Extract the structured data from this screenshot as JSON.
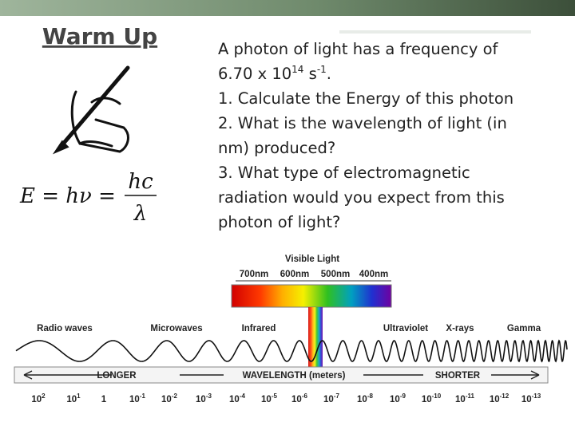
{
  "header": {
    "title": "Warm Up"
  },
  "formula": {
    "left": "E = hν =",
    "numerator": "hc",
    "denominator": "λ"
  },
  "prompt": {
    "line1": "A photon of light has a frequency of",
    "line2": {
      "base": "6.70 x 10",
      "exp": "14",
      "unit": " s",
      "unit_exp": "-1",
      "end": "."
    },
    "questions": [
      "1. Calculate the Energy of this photon",
      "2. What is the wavelength of light (in",
      "nm) produced?",
      "3. What type of electromagnetic",
      "radiation would you expect from this",
      "photon of light?"
    ]
  },
  "spectrum": {
    "visible_title": "Visible Light",
    "visible_ticks": [
      "700nm",
      "600nm",
      "500nm",
      "400nm"
    ],
    "bands": [
      "Radio waves",
      "Microwaves",
      "Infrared",
      "Ultraviolet",
      "X-rays",
      "Gamma"
    ],
    "arrow": {
      "left": "LONGER",
      "center": "WAVELENGTH (meters)",
      "right": "SHORTER"
    },
    "scale": [
      {
        "base": "10",
        "exp": "2"
      },
      {
        "base": "10",
        "exp": "1"
      },
      {
        "base": "1"
      },
      {
        "base": "10",
        "exp": "-1"
      },
      {
        "base": "10",
        "exp": "-2"
      },
      {
        "base": "10",
        "exp": "-3"
      },
      {
        "base": "10",
        "exp": "-4"
      },
      {
        "base": "10",
        "exp": "-5"
      },
      {
        "base": "10",
        "exp": "-6"
      },
      {
        "base": "10",
        "exp": "-7"
      },
      {
        "base": "10",
        "exp": "-8"
      },
      {
        "base": "10",
        "exp": "-9"
      },
      {
        "base": "10",
        "exp": "-10"
      },
      {
        "base": "10",
        "exp": "-11"
      },
      {
        "base": "10",
        "exp": "-12"
      },
      {
        "base": "10",
        "exp": "-13"
      }
    ]
  }
}
